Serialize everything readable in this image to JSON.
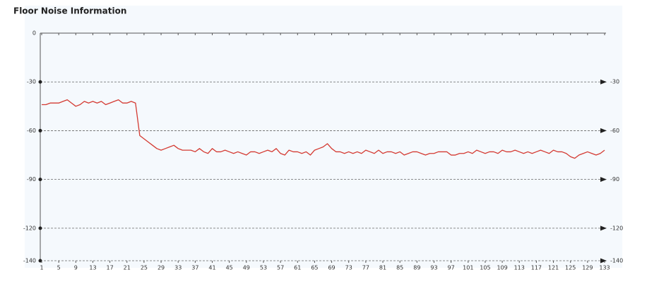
{
  "chart_data": {
    "type": "line",
    "title": "Floor Noise Information",
    "x": [
      1,
      2,
      3,
      4,
      5,
      6,
      7,
      8,
      9,
      10,
      11,
      12,
      13,
      14,
      15,
      16,
      17,
      18,
      19,
      20,
      21,
      22,
      23,
      24,
      25,
      26,
      27,
      28,
      29,
      30,
      31,
      32,
      33,
      34,
      35,
      36,
      37,
      38,
      39,
      40,
      41,
      42,
      43,
      44,
      45,
      46,
      47,
      48,
      49,
      50,
      51,
      52,
      53,
      54,
      55,
      56,
      57,
      58,
      59,
      60,
      61,
      62,
      63,
      64,
      65,
      66,
      67,
      68,
      69,
      70,
      71,
      72,
      73,
      74,
      75,
      76,
      77,
      78,
      79,
      80,
      81,
      82,
      83,
      84,
      85,
      86,
      87,
      88,
      89,
      90,
      91,
      92,
      93,
      94,
      95,
      96,
      97,
      98,
      99,
      100,
      101,
      102,
      103,
      104,
      105,
      106,
      107,
      108,
      109,
      110,
      111,
      112,
      113,
      114,
      115,
      116,
      117,
      118,
      119,
      120,
      121,
      122,
      123,
      124,
      125,
      126,
      127,
      128,
      129,
      130,
      131,
      132,
      133
    ],
    "values": [
      -44,
      -44,
      -43,
      -43,
      -43,
      -42,
      -41,
      -43,
      -45,
      -44,
      -42,
      -43,
      -42,
      -43,
      -42,
      -44,
      -43,
      -42,
      -41,
      -43,
      -43,
      -42,
      -43,
      -63,
      -65,
      -67,
      -69,
      -71,
      -72,
      -71,
      -70,
      -69,
      -71,
      -72,
      -72,
      -72,
      -73,
      -71,
      -73,
      -74,
      -71,
      -73,
      -73,
      -72,
      -73,
      -74,
      -73,
      -74,
      -75,
      -73,
      -73,
      -74,
      -73,
      -72,
      -73,
      -71,
      -74,
      -75,
      -72,
      -73,
      -73,
      -74,
      -73,
      -75,
      -72,
      -71,
      -70,
      -68,
      -71,
      -73,
      -73,
      -74,
      -73,
      -74,
      -73,
      -74,
      -72,
      -73,
      -74,
      -72,
      -74,
      -73,
      -73,
      -74,
      -73,
      -75,
      -74,
      -73,
      -73,
      -74,
      -75,
      -74,
      -74,
      -73,
      -73,
      -73,
      -75,
      -75,
      -74,
      -74,
      -73,
      -74,
      -72,
      -73,
      -74,
      -73,
      -73,
      -74,
      -72,
      -73,
      -73,
      -72,
      -73,
      -74,
      -73,
      -74,
      -73,
      -72,
      -73,
      -74,
      -72,
      -73,
      -73,
      -74,
      -76,
      -77,
      -75,
      -74,
      -73,
      -74,
      -75,
      -74,
      -72
    ],
    "color": "#d43a32",
    "xlim": [
      1,
      133
    ],
    "xticks": [
      1,
      5,
      9,
      13,
      17,
      21,
      25,
      29,
      33,
      37,
      41,
      45,
      49,
      53,
      57,
      61,
      65,
      69,
      73,
      77,
      81,
      85,
      89,
      93,
      97,
      101,
      105,
      109,
      113,
      117,
      121,
      125,
      129,
      133
    ],
    "ylim": [
      -140,
      0
    ],
    "yticks": [
      0,
      -30,
      -60,
      -90,
      -120,
      -140
    ],
    "y2lim": [
      -140,
      0
    ],
    "y2ticks": [
      -30,
      -60,
      -90,
      -120,
      -140
    ],
    "grid": true
  }
}
